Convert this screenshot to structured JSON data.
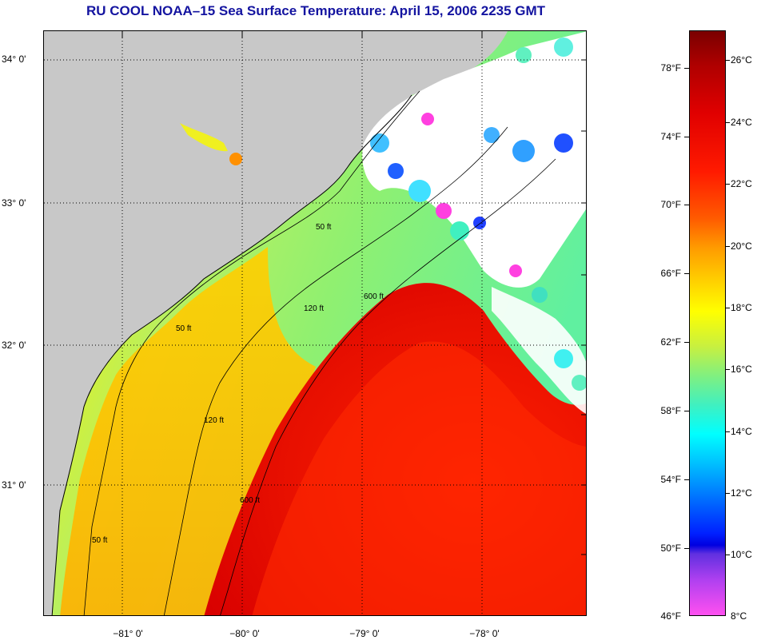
{
  "title": "RU COOL  NOAA–15  Sea Surface Temperature:  April 15, 2006 2235 GMT",
  "map": {
    "lat_labels": [
      "34° 0'",
      "33° 0'",
      "32° 0'",
      "31° 0'"
    ],
    "lon_labels": [
      "−81° 0'",
      "−80° 0'",
      "−79° 0'",
      "−78° 0'"
    ],
    "contour_labels": [
      "50 ft",
      "120 ft",
      "600 ft"
    ],
    "colors": {
      "land": "#c8c8c8",
      "cloud": "#ffffff",
      "gulf_stream": "#e80000",
      "shelf": "#a0f060"
    }
  },
  "colorbar": {
    "fahrenheit": [
      "78°F",
      "74°F",
      "70°F",
      "66°F",
      "62°F",
      "58°F",
      "54°F",
      "50°F",
      "46°F"
    ],
    "celsius": [
      "26°C",
      "24°C",
      "22°C",
      "20°C",
      "18°C",
      "16°C",
      "14°C",
      "12°C",
      "10°C",
      "8°C"
    ]
  }
}
